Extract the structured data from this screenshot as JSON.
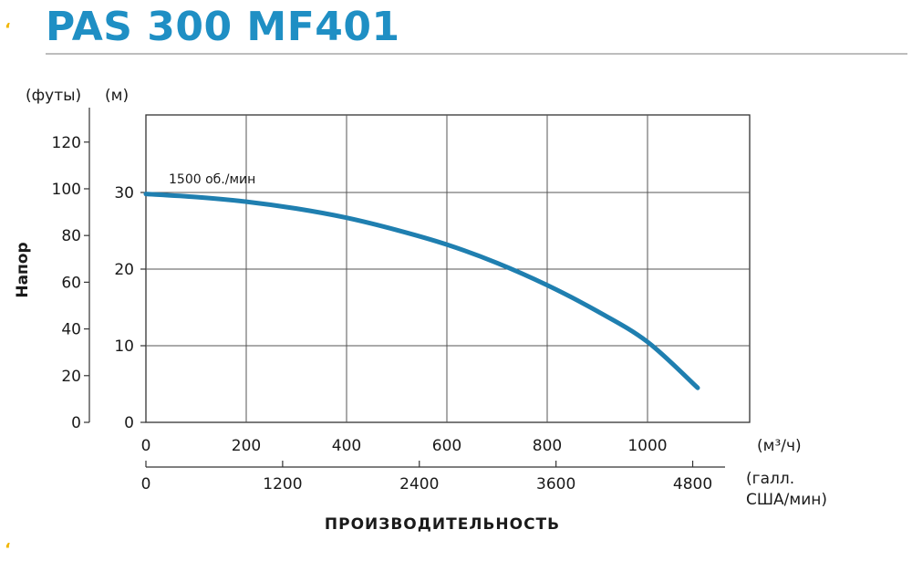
{
  "header": {
    "title": "PAS 300 MF401",
    "accent_color": "#f2b705",
    "title_color": "#1f8fc4"
  },
  "chart_data": {
    "type": "line",
    "ylabel": "Напор",
    "xlabel": "ПРОИЗВОДИТЕЛЬНОСТЬ",
    "y_unit_ft": "(футы)",
    "y_unit_m": "(м)",
    "x_unit_m3h": "(м³/ч)",
    "x_unit_gpm_line1": "(галл.",
    "x_unit_gpm_line2": "США/мин)",
    "x_ticks_m3h": [
      "0",
      "200",
      "400",
      "600",
      "800",
      "1000"
    ],
    "x_ticks_gpm": [
      "0",
      "1200",
      "2400",
      "3600",
      "4800"
    ],
    "y_ticks_m": [
      "0",
      "10",
      "20",
      "30"
    ],
    "y_ticks_ft": [
      "0",
      "20",
      "40",
      "60",
      "80",
      "100",
      "120"
    ],
    "xlim_m3h": [
      0,
      1200
    ],
    "ylim_m": [
      0,
      41
    ],
    "grid": true,
    "line_color": "#1f7fb0",
    "series": [
      {
        "name": "1500 об./мин",
        "x": [
          0,
          100,
          200,
          300,
          400,
          500,
          600,
          700,
          800,
          900,
          1000,
          1100
        ],
        "y": [
          29.8,
          29.4,
          28.8,
          27.9,
          26.7,
          25.1,
          23.2,
          20.8,
          17.9,
          14.5,
          10.5,
          4.5
        ]
      }
    ]
  }
}
